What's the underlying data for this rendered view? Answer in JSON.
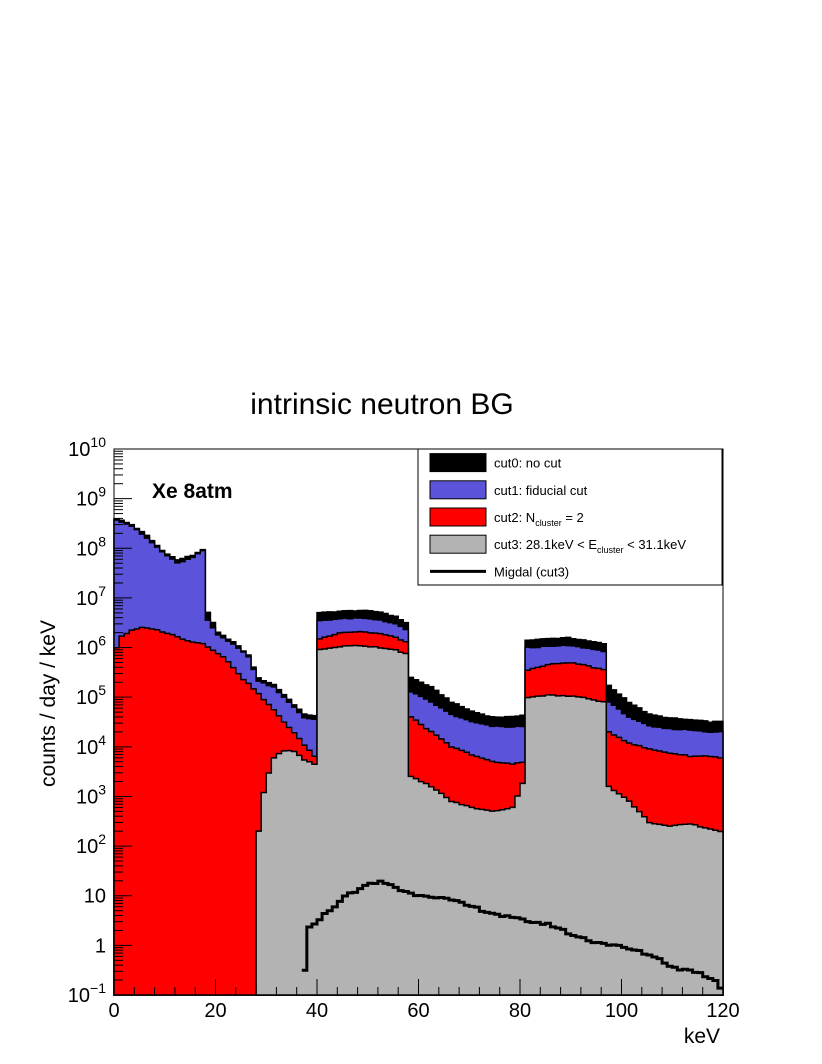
{
  "chart_data": {
    "type": "area",
    "title": "intrinsic neutron BG",
    "annotation": "Xe 8atm",
    "xlabel": "keV",
    "ylabel": "counts / day / keV",
    "xlim": [
      0,
      120
    ],
    "ylim": [
      0.1,
      10000000000
    ],
    "ylog": true,
    "bin_width_keV": 1,
    "x_ticks": [
      {
        "v": 0,
        "label": "0"
      },
      {
        "v": 20,
        "label": "20"
      },
      {
        "v": 40,
        "label": "40"
      },
      {
        "v": 60,
        "label": "60"
      },
      {
        "v": 80,
        "label": "80"
      },
      {
        "v": 100,
        "label": "100"
      },
      {
        "v": 120,
        "label": "120"
      }
    ],
    "y_ticks": [
      {
        "v": 0.1,
        "base": "10",
        "exp": "−1"
      },
      {
        "v": 1,
        "base": "1",
        "exp": ""
      },
      {
        "v": 10,
        "base": "10",
        "exp": ""
      },
      {
        "v": 100,
        "base": "10",
        "exp": "2"
      },
      {
        "v": 1000,
        "base": "10",
        "exp": "3"
      },
      {
        "v": 10000,
        "base": "10",
        "exp": "4"
      },
      {
        "v": 100000,
        "base": "10",
        "exp": "5"
      },
      {
        "v": 1000000,
        "base": "10",
        "exp": "6"
      },
      {
        "v": 10000000,
        "base": "10",
        "exp": "7"
      },
      {
        "v": 100000000,
        "base": "10",
        "exp": "8"
      },
      {
        "v": 1000000000,
        "base": "10",
        "exp": "9"
      },
      {
        "v": 10000000000,
        "base": "10",
        "exp": "10"
      }
    ],
    "legend_position": "top-right",
    "legend": [
      {
        "key": "cut0",
        "kind": "box",
        "color": "#000000",
        "parts": [
          {
            "t": "cut0: no cut"
          }
        ]
      },
      {
        "key": "cut1",
        "kind": "box",
        "color": "#5b53d9",
        "parts": [
          {
            "t": "cut1: fiducial cut"
          }
        ]
      },
      {
        "key": "cut2",
        "kind": "box",
        "color": "#ff0000",
        "parts": [
          {
            "t": "cut2: N"
          },
          {
            "t": "cluster",
            "sub": true
          },
          {
            "t": " = 2"
          }
        ]
      },
      {
        "key": "cut3",
        "kind": "box",
        "color": "#b3b3b3",
        "parts": [
          {
            "t": "cut3: 28.1keV < E"
          },
          {
            "t": "cluster",
            "sub": true
          },
          {
            "t": " < 31.1keV"
          }
        ]
      },
      {
        "key": "migdal",
        "kind": "line",
        "color": "#000000",
        "parts": [
          {
            "t": "Migdal (cut3)"
          }
        ]
      }
    ],
    "series": [
      {
        "name": "cut0: no cut",
        "color": "#000000",
        "style": "filled",
        "knots": [
          [
            0,
            400000000.0
          ],
          [
            3,
            300000000.0
          ],
          [
            6,
            180000000.0
          ],
          [
            9,
            90000000.0
          ],
          [
            12,
            58000000.0
          ],
          [
            15,
            72000000.0
          ],
          [
            17,
            95000000.0
          ],
          [
            18,
            5000000.0
          ],
          [
            20,
            2000000.0
          ],
          [
            23,
            1300000.0
          ],
          [
            26,
            700000.0
          ],
          [
            28,
            240000.0
          ],
          [
            31,
            180000.0
          ],
          [
            34,
            90000.0
          ],
          [
            37,
            45000.0
          ],
          [
            39,
            43000.0
          ],
          [
            40,
            5000000.0
          ],
          [
            44,
            5400000.0
          ],
          [
            48,
            5600000.0
          ],
          [
            52,
            5200000.0
          ],
          [
            55,
            4200000.0
          ],
          [
            57,
            3200000.0
          ],
          [
            58,
            250000.0
          ],
          [
            62,
            160000.0
          ],
          [
            66,
            80000.0
          ],
          [
            70,
            52000.0
          ],
          [
            74,
            40000.0
          ],
          [
            78,
            40000.0
          ],
          [
            80,
            44000.0
          ],
          [
            81,
            1400000.0
          ],
          [
            85,
            1500000.0
          ],
          [
            89,
            1600000.0
          ],
          [
            92,
            1400000.0
          ],
          [
            96,
            1200000.0
          ],
          [
            97,
            170000.0
          ],
          [
            101,
            80000.0
          ],
          [
            105,
            45000.0
          ],
          [
            109,
            38000.0
          ],
          [
            113,
            35000.0
          ],
          [
            117,
            32000.0
          ],
          [
            119,
            32000.0
          ],
          [
            120,
            600000.0
          ]
        ]
      },
      {
        "name": "cut1: fiducial cut",
        "color": "#5b53d9",
        "style": "filled",
        "knots": [
          [
            0,
            380000000.0
          ],
          [
            3,
            280000000.0
          ],
          [
            6,
            160000000.0
          ],
          [
            9,
            85000000.0
          ],
          [
            12,
            50000000.0
          ],
          [
            15,
            65000000.0
          ],
          [
            17,
            90000000.0
          ],
          [
            18,
            3500000.0
          ],
          [
            20,
            1800000.0
          ],
          [
            23,
            1200000.0
          ],
          [
            26,
            650000.0
          ],
          [
            28,
            210000.0
          ],
          [
            31,
            160000.0
          ],
          [
            34,
            80000.0
          ],
          [
            37,
            38000.0
          ],
          [
            39,
            36000.0
          ],
          [
            40,
            3500000.0
          ],
          [
            44,
            3800000.0
          ],
          [
            48,
            3900000.0
          ],
          [
            52,
            3600000.0
          ],
          [
            55,
            3000000.0
          ],
          [
            57,
            2300000.0
          ],
          [
            58,
            130000.0
          ],
          [
            62,
            80000.0
          ],
          [
            66,
            45000.0
          ],
          [
            70,
            32000.0
          ],
          [
            74,
            26000.0
          ],
          [
            78,
            25000.0
          ],
          [
            80,
            26000.0
          ],
          [
            81,
            1000000.0
          ],
          [
            85,
            1050000.0
          ],
          [
            89,
            1100000.0
          ],
          [
            92,
            1000000.0
          ],
          [
            96,
            850000.0
          ],
          [
            97,
            80000.0
          ],
          [
            101,
            40000.0
          ],
          [
            105,
            26000.0
          ],
          [
            109,
            23000.0
          ],
          [
            113,
            22000.0
          ],
          [
            117,
            20000.0
          ],
          [
            119,
            20000.0
          ],
          [
            120,
            350000.0
          ]
        ]
      },
      {
        "name": "cut2: Ncluster = 2",
        "color": "#ff0000",
        "style": "filled",
        "knots": [
          [
            0,
            1000000.0
          ],
          [
            1,
            1700000.0
          ],
          [
            3,
            2200000.0
          ],
          [
            5,
            2500000.0
          ],
          [
            7,
            2400000.0
          ],
          [
            9,
            2100000.0
          ],
          [
            11,
            1800000.0
          ],
          [
            13,
            1500000.0
          ],
          [
            15,
            1300000.0
          ],
          [
            17,
            1200000.0
          ],
          [
            19,
            900000.0
          ],
          [
            21,
            650000.0
          ],
          [
            23,
            400000.0
          ],
          [
            25,
            230000.0
          ],
          [
            27,
            150000.0
          ],
          [
            29,
            90000.0
          ],
          [
            31,
            55000.0
          ],
          [
            33,
            32000.0
          ],
          [
            35,
            19000.0
          ],
          [
            37,
            11000.0
          ],
          [
            39,
            6500.0
          ],
          [
            40,
            1500000.0
          ],
          [
            44,
            2000000.0
          ],
          [
            48,
            2100000.0
          ],
          [
            52,
            1900000.0
          ],
          [
            55,
            1600000.0
          ],
          [
            57,
            1300000.0
          ],
          [
            58,
            40000.0
          ],
          [
            62,
            20000.0
          ],
          [
            66,
            10000.0
          ],
          [
            70,
            7000.0
          ],
          [
            74,
            5000.0
          ],
          [
            78,
            4500.0
          ],
          [
            80,
            5000.0
          ],
          [
            81,
            350000.0
          ],
          [
            85,
            450000.0
          ],
          [
            89,
            500000.0
          ],
          [
            92,
            450000.0
          ],
          [
            96,
            350000.0
          ],
          [
            97,
            20000.0
          ],
          [
            101,
            12000.0
          ],
          [
            105,
            9000.0
          ],
          [
            109,
            7500.0
          ],
          [
            113,
            6500.0
          ],
          [
            117,
            6500.0
          ],
          [
            119,
            6000.0
          ],
          [
            120,
            50000.0
          ]
        ]
      },
      {
        "name": "cut3: 28.1keV < Ecluster < 31.1keV",
        "color": "#b3b3b3",
        "style": "filled",
        "knots": [
          [
            28,
            200
          ],
          [
            29,
            1200
          ],
          [
            30,
            3000
          ],
          [
            31,
            6000
          ],
          [
            33,
            8500
          ],
          [
            35,
            8000
          ],
          [
            37,
            5500
          ],
          [
            39,
            4500
          ],
          [
            40,
            900000.0
          ],
          [
            44,
            1050000.0
          ],
          [
            48,
            1100000.0
          ],
          [
            52,
            1000000.0
          ],
          [
            55,
            900000.0
          ],
          [
            57,
            750000.0
          ],
          [
            58,
            2500
          ],
          [
            62,
            1600
          ],
          [
            66,
            800
          ],
          [
            70,
            600
          ],
          [
            74,
            500
          ],
          [
            78,
            600
          ],
          [
            80,
            1800
          ],
          [
            81,
            100000.0
          ],
          [
            85,
            110000.0
          ],
          [
            89,
            105000.0
          ],
          [
            92,
            100000.0
          ],
          [
            96,
            80000.0
          ],
          [
            97,
            1600
          ],
          [
            101,
            800
          ],
          [
            105,
            300
          ],
          [
            109,
            250
          ],
          [
            113,
            280
          ],
          [
            117,
            220
          ],
          [
            119,
            200
          ],
          [
            120,
            60000.0
          ]
        ]
      },
      {
        "name": "Migdal (cut3)",
        "color": "#000000",
        "style": "step",
        "knots": [
          [
            37,
            0.3
          ],
          [
            38,
            2.2
          ],
          [
            40,
            3.5
          ],
          [
            42,
            5
          ],
          [
            44,
            8
          ],
          [
            46,
            11
          ],
          [
            48,
            14
          ],
          [
            50,
            17
          ],
          [
            52,
            19
          ],
          [
            54,
            17
          ],
          [
            56,
            13
          ],
          [
            58,
            11
          ],
          [
            62,
            10
          ],
          [
            66,
            8
          ],
          [
            70,
            6
          ],
          [
            74,
            4.5
          ],
          [
            78,
            3.5
          ],
          [
            82,
            3
          ],
          [
            86,
            2.5
          ],
          [
            90,
            1.6
          ],
          [
            94,
            1.2
          ],
          [
            98,
            1.0
          ],
          [
            102,
            0.8
          ],
          [
            106,
            0.6
          ],
          [
            110,
            0.35
          ],
          [
            114,
            0.3
          ],
          [
            118,
            0.2
          ],
          [
            120,
            0.1
          ]
        ]
      }
    ]
  }
}
